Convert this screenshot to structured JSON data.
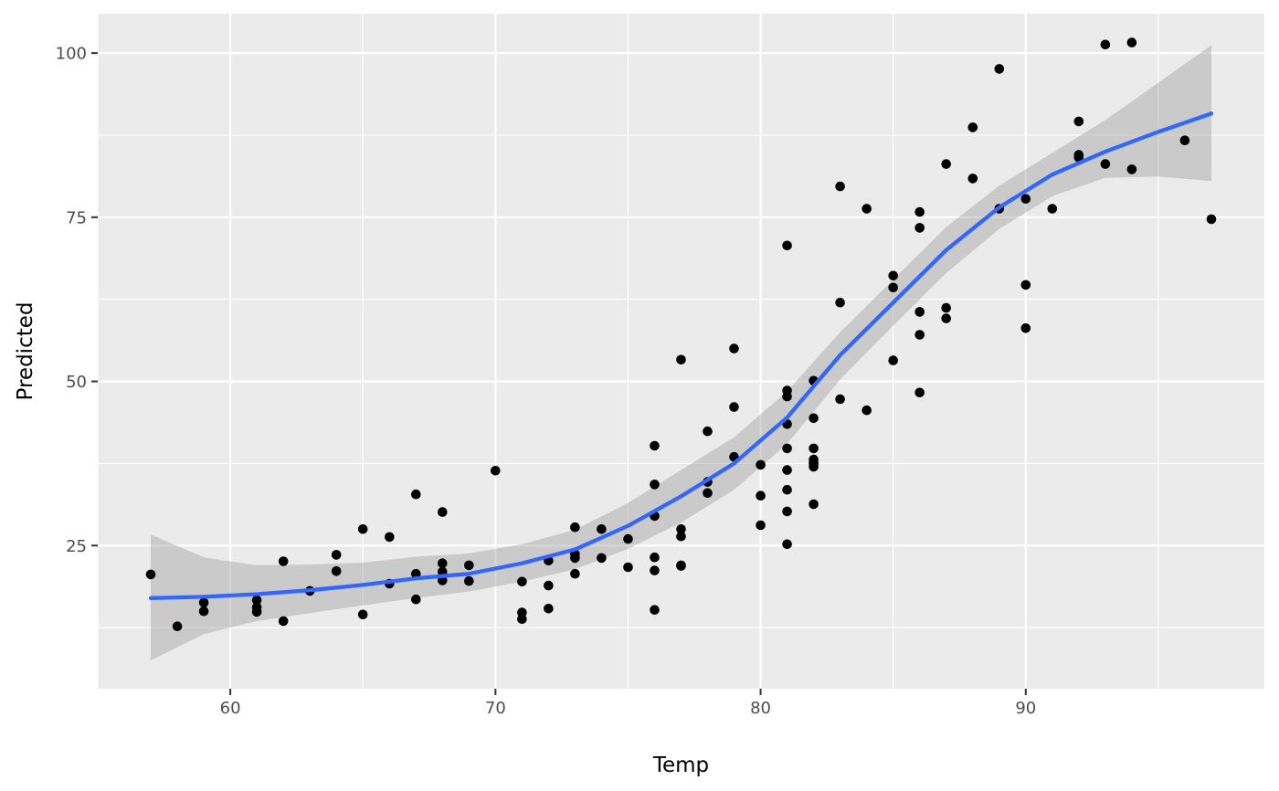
{
  "chart_data": {
    "type": "scatter",
    "xlabel": "Temp",
    "ylabel": "Predicted",
    "xlim": [
      55,
      99
    ],
    "ylim": [
      3.2,
      106
    ],
    "x_ticks": [
      60,
      70,
      80,
      90
    ],
    "x_tick_labels": [
      "60",
      "70",
      "80",
      "90"
    ],
    "y_ticks": [
      25,
      50,
      75,
      100
    ],
    "y_tick_labels": [
      "25",
      "50",
      "75",
      "100"
    ],
    "grid": true,
    "legend": "none",
    "colors": {
      "panel": "#ebebeb",
      "grid": "#ffffff",
      "points": "#000000",
      "smooth_line": "#3366ff",
      "ribbon": "#999999"
    },
    "points": {
      "x": [
        57,
        58,
        59,
        59,
        61,
        61,
        61,
        62,
        62,
        63,
        64,
        64,
        65,
        65,
        66,
        66,
        67,
        67,
        67,
        68,
        68,
        68,
        68,
        69,
        69,
        70,
        71,
        71,
        71,
        72,
        72,
        72,
        73,
        73,
        73,
        73,
        74,
        74,
        75,
        75,
        76,
        76,
        76,
        76,
        76,
        76,
        77,
        77,
        77,
        77,
        77,
        78,
        78,
        78,
        79,
        79,
        79,
        80,
        80,
        80,
        81,
        81,
        81,
        81,
        81,
        81,
        81,
        81,
        81,
        82,
        82,
        82,
        82,
        82,
        82,
        82,
        82,
        83,
        83,
        83,
        84,
        84,
        85,
        85,
        85,
        86,
        86,
        86,
        86,
        86,
        87,
        87,
        87,
        88,
        88,
        89,
        89,
        90,
        90,
        90,
        91,
        92,
        92,
        92,
        93,
        93,
        94,
        94,
        96,
        97
      ],
      "y": [
        20.6,
        12.7,
        16.3,
        15.0,
        16.7,
        15.6,
        14.9,
        22.6,
        13.5,
        18.1,
        23.6,
        21.1,
        27.5,
        14.5,
        26.3,
        19.2,
        32.8,
        20.7,
        16.8,
        30.1,
        22.3,
        21.0,
        19.7,
        22.0,
        19.6,
        36.4,
        19.5,
        14.8,
        13.8,
        22.7,
        18.9,
        15.4,
        27.8,
        23.7,
        23.1,
        20.7,
        27.5,
        23.1,
        26.0,
        21.7,
        40.2,
        34.3,
        29.5,
        23.2,
        21.2,
        15.2,
        53.3,
        27.5,
        26.4,
        21.9,
        22.0,
        42.4,
        34.7,
        33.0,
        55.0,
        46.1,
        38.5,
        37.3,
        32.6,
        28.1,
        70.7,
        48.6,
        47.7,
        43.5,
        39.8,
        36.5,
        33.5,
        30.2,
        25.2,
        50.1,
        44.4,
        39.8,
        38.1,
        37.6,
        37.0,
        31.3,
        37.5,
        79.7,
        62.0,
        47.3,
        76.3,
        45.6,
        66.1,
        64.3,
        53.2,
        75.8,
        73.4,
        60.6,
        57.1,
        48.3,
        83.1,
        61.2,
        59.6,
        88.7,
        80.9,
        97.6,
        76.3,
        77.8,
        64.7,
        58.1,
        76.3,
        89.6,
        84.5,
        84.1,
        101.3,
        83.1,
        101.6,
        82.3,
        86.7,
        74.7
      ]
    },
    "smooth": {
      "x": [
        57,
        59,
        61,
        63,
        65,
        67,
        69,
        71,
        73,
        75,
        77,
        79,
        81,
        83,
        85,
        87,
        89,
        91,
        93,
        95,
        97
      ],
      "y": [
        17.0,
        17.2,
        17.6,
        18.2,
        19.0,
        20.0,
        20.7,
        22.3,
        24.4,
        28.0,
        32.5,
        37.5,
        44.5,
        54.0,
        62.0,
        70.0,
        76.5,
        81.5,
        85.0,
        88.0,
        90.8
      ],
      "lower": [
        7.5,
        11.5,
        13.5,
        14.7,
        15.9,
        17.0,
        18.0,
        19.5,
        21.4,
        24.5,
        28.5,
        33.5,
        40.5,
        50.3,
        58.5,
        66.5,
        73.2,
        78.2,
        81.0,
        81.2,
        80.5
      ],
      "upper": [
        26.7,
        23.2,
        22.0,
        22.1,
        22.4,
        23.3,
        23.8,
        25.2,
        27.4,
        31.5,
        36.5,
        41.5,
        48.5,
        57.5,
        65.5,
        73.5,
        79.8,
        84.8,
        89.8,
        95.5,
        101.2
      ]
    }
  }
}
